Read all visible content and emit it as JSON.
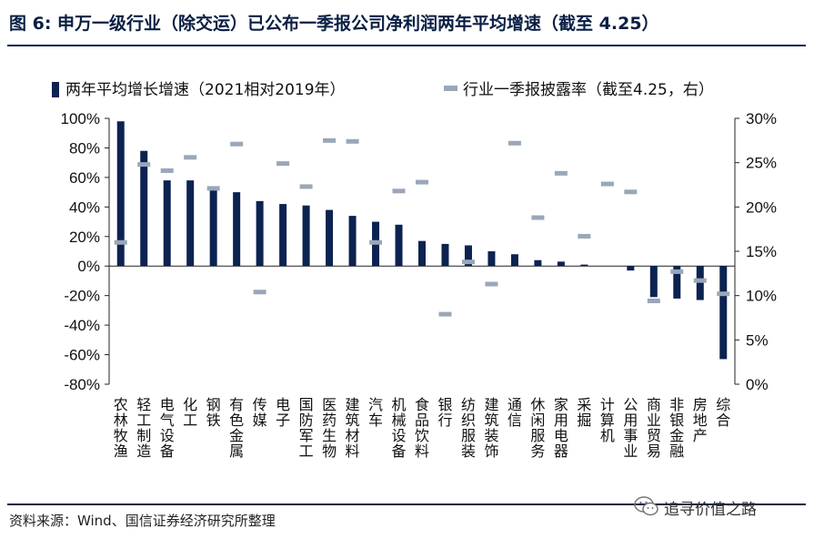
{
  "title": "图 6: 申万一级行业（除交运）已公布一季报公司净利润两年平均增速（截至 4.25）",
  "source": "资料来源：Wind、国信证券经济研究所整理",
  "watermark": "追寻价值之路",
  "colors": {
    "bar": "#0c2250",
    "marker": "#9aa7b8",
    "title": "#0a1f44"
  },
  "chart_data": {
    "type": "bar",
    "categories": [
      "农林牧渔",
      "轻工制造",
      "电气设备",
      "化工",
      "钢铁",
      "有色金属",
      "传媒",
      "电子",
      "国防军工",
      "医药生物",
      "建筑材料",
      "汽车",
      "机械设备",
      "食品饮料",
      "银行",
      "纺织服装",
      "建筑装饰",
      "通信",
      "休闲服务",
      "家用电器",
      "采掘",
      "计算机",
      "公用事业",
      "商业贸易",
      "非银金融",
      "房地产",
      "综合"
    ],
    "series": [
      {
        "name": "两年平均增长增速（2021相对2019年）",
        "type": "bar",
        "axis": "left",
        "values": [
          98,
          78,
          58,
          58,
          52,
          50,
          44,
          42,
          41,
          38,
          34,
          30,
          28,
          17,
          15,
          14,
          10,
          8,
          4,
          3,
          1,
          0,
          -3,
          -21,
          -22,
          -23,
          -63
        ]
      },
      {
        "name": "行业一季报披露率（截至4.25，右）",
        "type": "marker",
        "axis": "right",
        "values": [
          16.0,
          24.8,
          24.1,
          25.6,
          22.1,
          27.1,
          10.4,
          24.9,
          22.3,
          27.5,
          27.4,
          16.0,
          21.8,
          22.8,
          7.9,
          13.8,
          11.3,
          27.2,
          18.8,
          23.8,
          16.7,
          22.6,
          21.7,
          9.4,
          12.7,
          11.7,
          10.2
        ]
      }
    ],
    "y_left": {
      "min": -80,
      "max": 100,
      "step": 20,
      "ticks": [
        "-80%",
        "-60%",
        "-40%",
        "-20%",
        "0%",
        "20%",
        "40%",
        "60%",
        "80%",
        "100%"
      ]
    },
    "y_right": {
      "min": 0,
      "max": 30,
      "step": 5,
      "ticks": [
        "0%",
        "5%",
        "10%",
        "15%",
        "20%",
        "25%",
        "30%"
      ]
    },
    "legend_position": "top",
    "grid": false
  }
}
